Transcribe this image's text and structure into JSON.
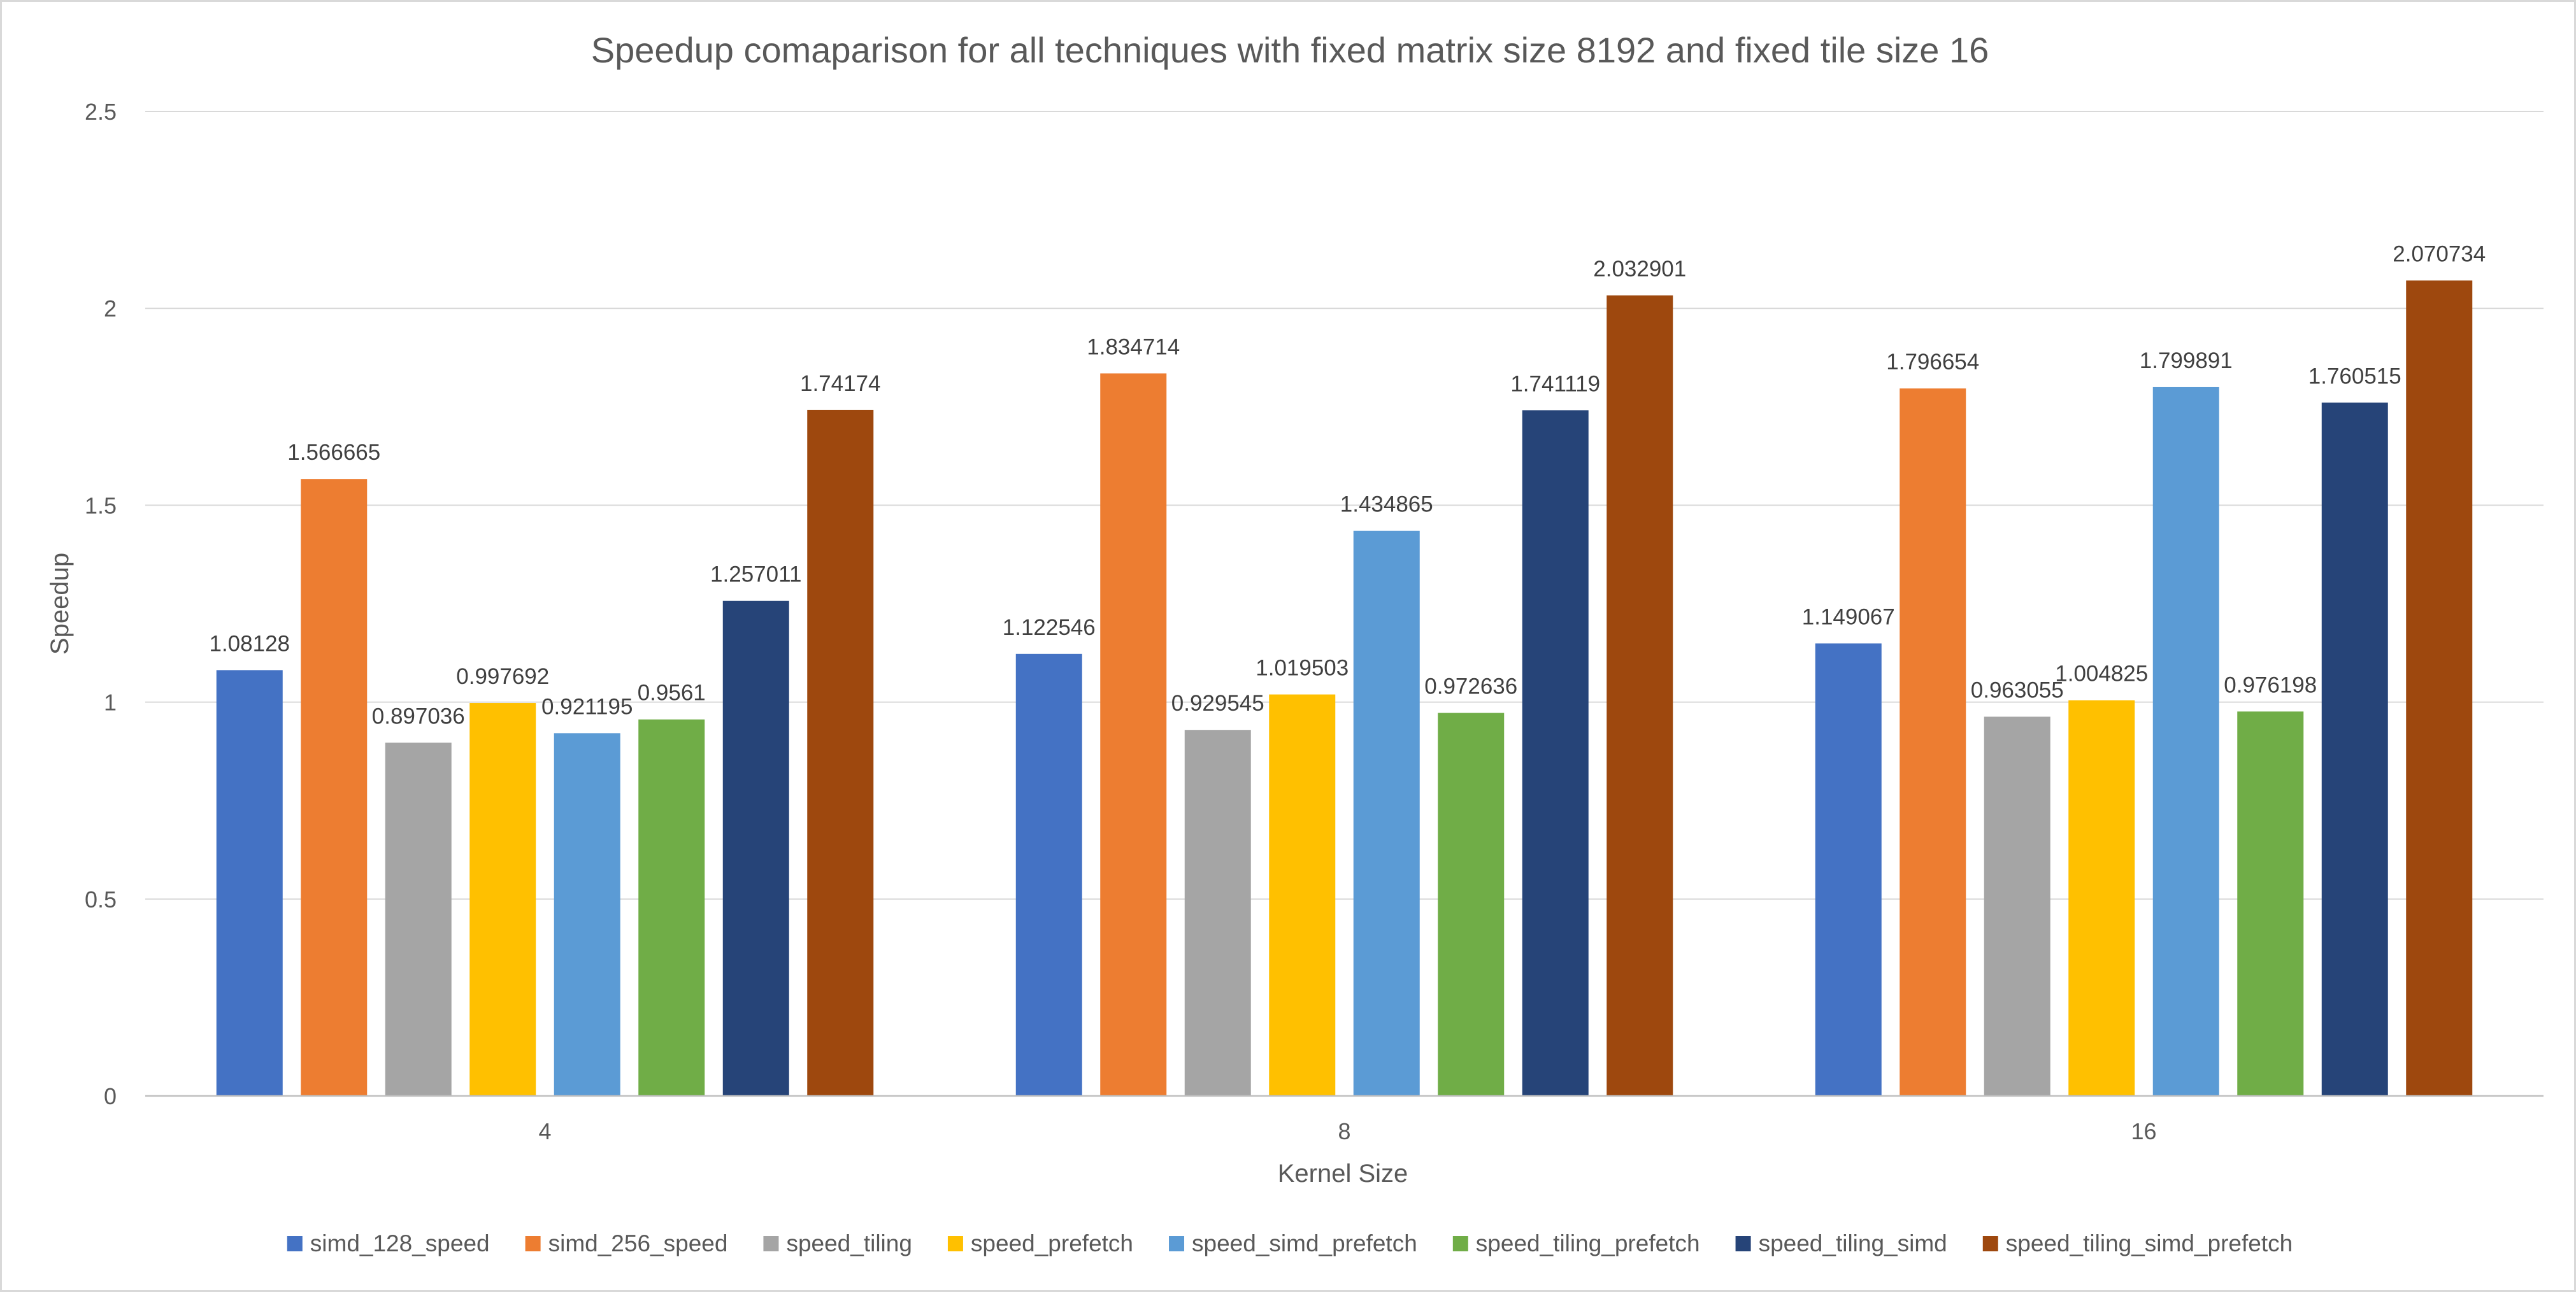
{
  "chart_data": {
    "type": "bar",
    "title": "Speedup comaparison for all techniques with fixed matrix size 8192 and fixed tile size 16",
    "xlabel": "Kernel Size",
    "ylabel": "Speedup",
    "ylim": [
      0,
      2.5
    ],
    "yticks": [
      "0",
      "0.5",
      "1",
      "1.5",
      "2",
      "2.5"
    ],
    "categories": [
      "4",
      "8",
      "16"
    ],
    "grid": true,
    "legend_position": "bottom",
    "series": [
      {
        "name": "simd_128_speed",
        "color": "#4472C4",
        "values": [
          1.08128,
          1.122546,
          1.149067
        ],
        "labels": [
          "1.08128",
          "1.122546",
          "1.149067"
        ]
      },
      {
        "name": "simd_256_speed",
        "color": "#ED7D31",
        "values": [
          1.566665,
          1.834714,
          1.796654
        ],
        "labels": [
          "1.566665",
          "1.834714",
          "1.796654"
        ]
      },
      {
        "name": "speed_tiling",
        "color": "#A5A5A5",
        "values": [
          0.897036,
          0.929545,
          0.963055
        ],
        "labels": [
          "0.897036",
          "0.929545",
          "0.963055"
        ]
      },
      {
        "name": "speed_prefetch",
        "color": "#FFC000",
        "values": [
          0.997692,
          1.019503,
          1.004825
        ],
        "labels": [
          "0.997692",
          "1.019503",
          "1.004825"
        ]
      },
      {
        "name": "speed_simd_prefetch",
        "color": "#5B9BD5",
        "values": [
          0.921195,
          1.434865,
          1.799891
        ],
        "labels": [
          "0.921195",
          "1.434865",
          "1.799891"
        ]
      },
      {
        "name": "speed_tiling_prefetch",
        "color": "#70AD47",
        "values": [
          0.9561,
          0.972636,
          0.976198
        ],
        "labels": [
          "0.9561",
          "0.972636",
          "0.976198"
        ]
      },
      {
        "name": "speed_tiling_simd",
        "color": "#264478",
        "values": [
          1.257011,
          1.741119,
          1.760515
        ],
        "labels": [
          "1.257011",
          "1.741119",
          "1.760515"
        ]
      },
      {
        "name": "speed_tiling_simd_prefetch",
        "color": "#9E480E",
        "values": [
          1.74174,
          2.032901,
          2.070734
        ],
        "labels": [
          "1.74174",
          "2.032901",
          "2.070734"
        ]
      }
    ]
  }
}
